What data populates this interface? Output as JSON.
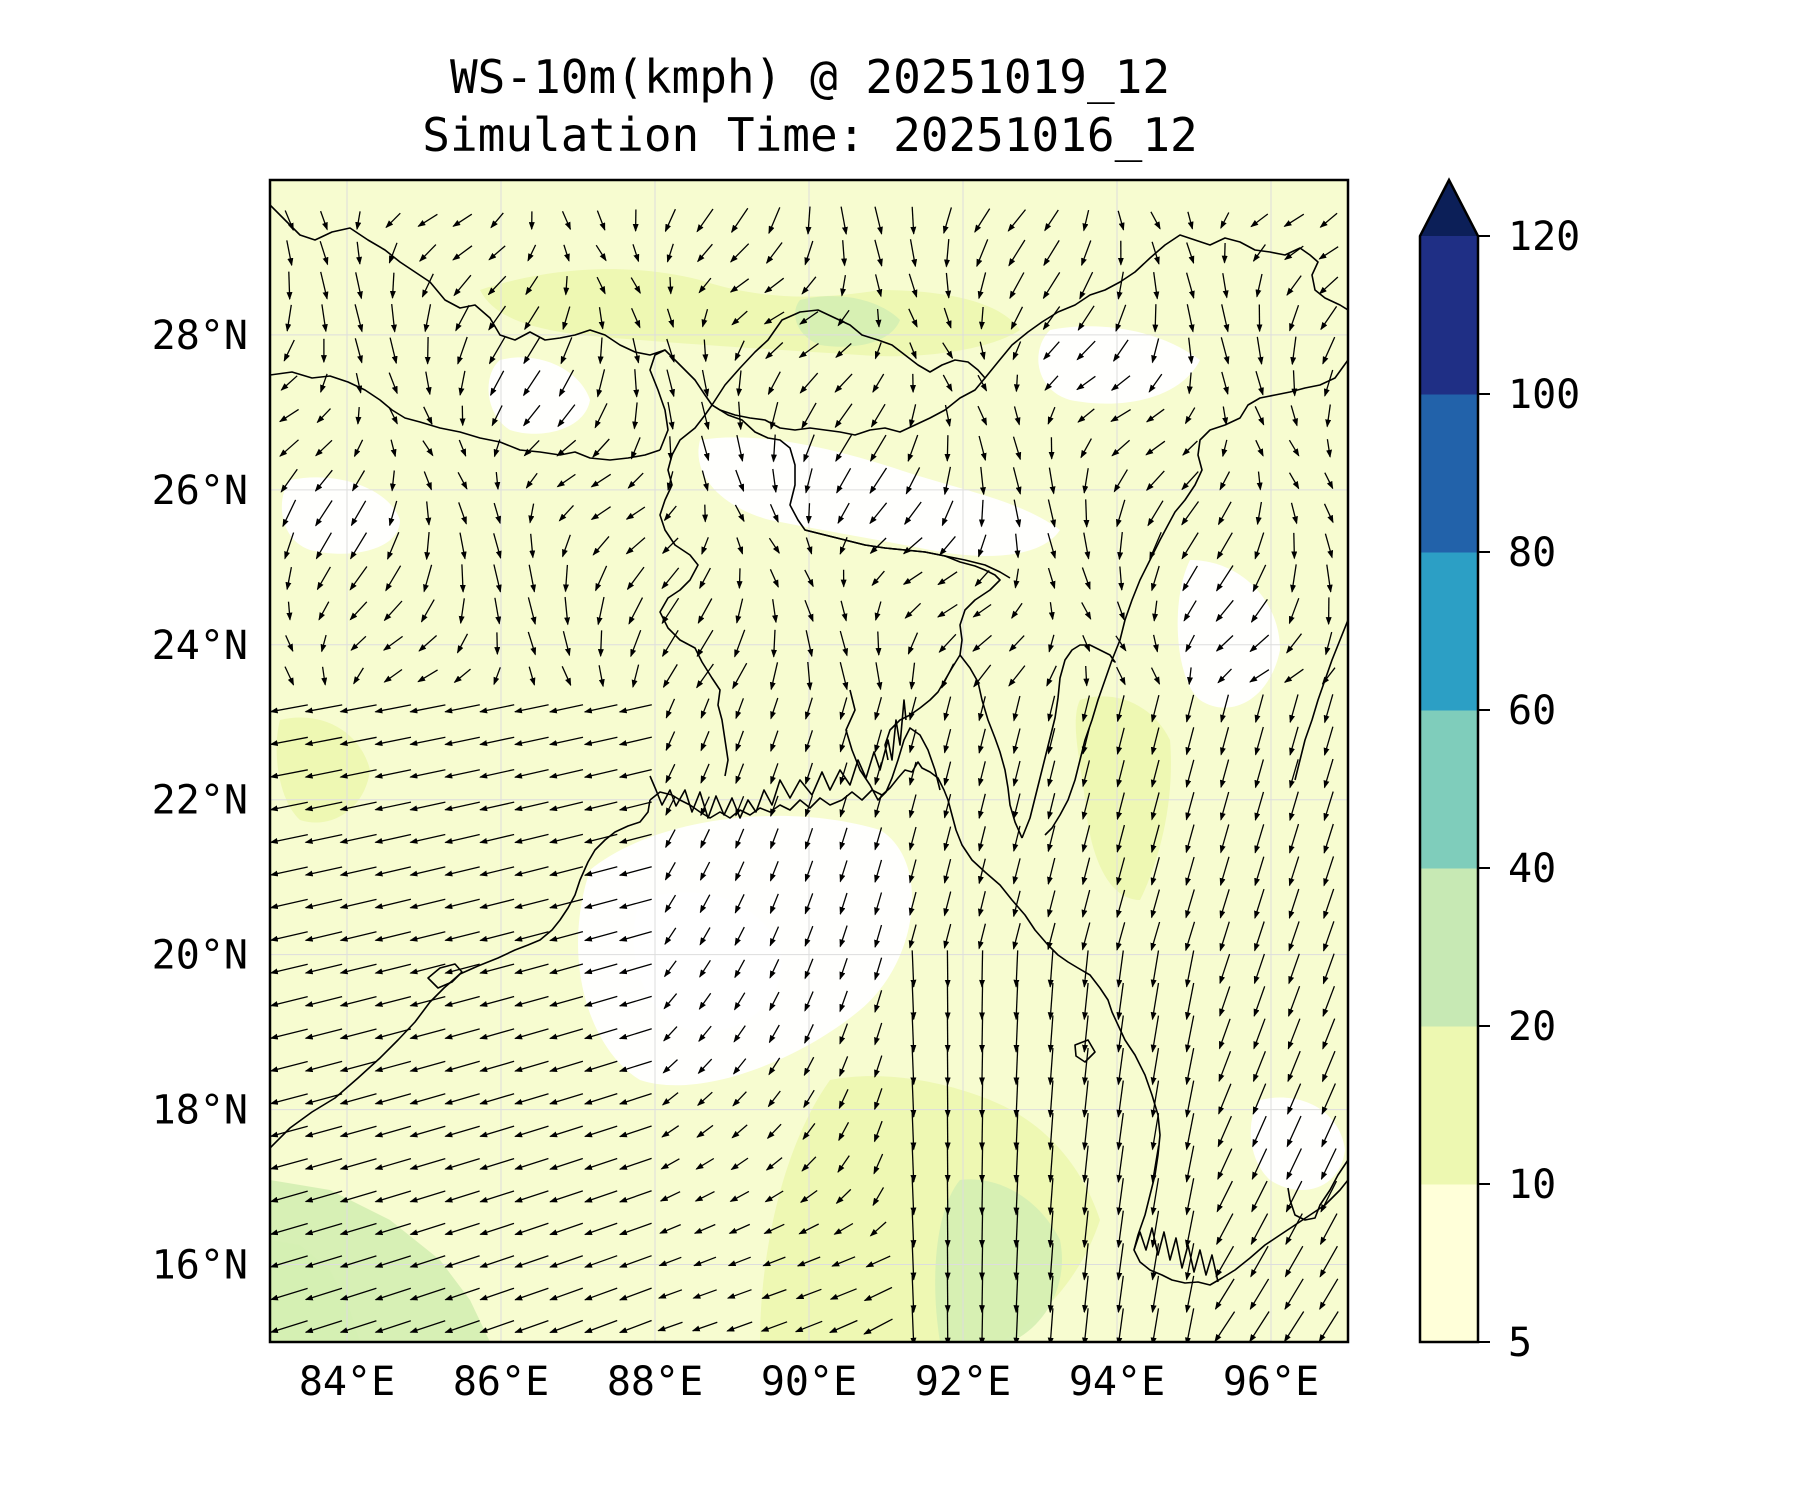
{
  "figure": {
    "title_line1": "WS-10m(kmph) @ 20251019_12",
    "title_line2": "Simulation Time: 20251016_12"
  },
  "map": {
    "lon_range": [
      83.0,
      97.0
    ],
    "lat_range": [
      15.0,
      30.0
    ],
    "lon_ticks": [
      84,
      86,
      88,
      90,
      92,
      94,
      96
    ],
    "lat_ticks": [
      16,
      18,
      20,
      22,
      24,
      26,
      28
    ],
    "lon_tick_labels": [
      "84°E",
      "86°E",
      "88°E",
      "90°E",
      "92°E",
      "94°E",
      "96°E"
    ],
    "lat_tick_labels": [
      "16°N",
      "18°N",
      "20°N",
      "22°N",
      "24°N",
      "26°N",
      "28°N"
    ],
    "gridlines": true
  },
  "colorbar": {
    "levels": [
      5,
      10,
      20,
      40,
      60,
      80,
      100,
      120
    ],
    "tick_labels": [
      "5",
      "10",
      "20",
      "40",
      "60",
      "80",
      "100",
      "120"
    ],
    "colors": [
      "#ffffd9",
      "#edf8b1",
      "#c7e9b4",
      "#7fcdbb",
      "#2c9fc5",
      "#2262aa",
      "#1f2f85"
    ],
    "extend_color": "#0c1f58",
    "extend": "max"
  },
  "field_colors": {
    "low": "#ffffff",
    "mid": "#f7fcd0",
    "band2": "#edf8b1",
    "band3": "#d5efb3"
  }
}
